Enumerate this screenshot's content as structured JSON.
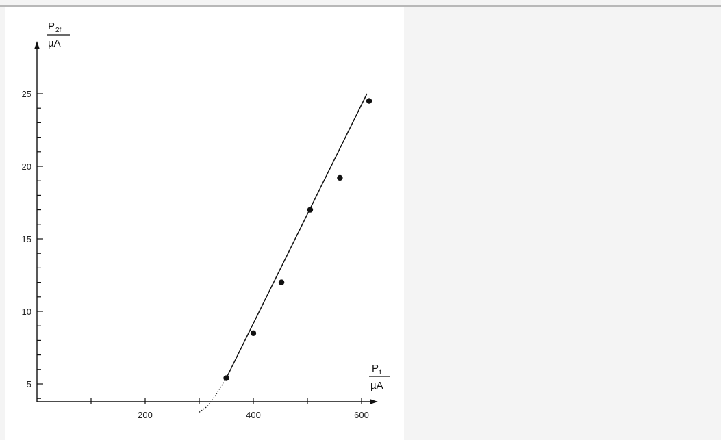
{
  "chart_data": {
    "type": "scatter",
    "title": "",
    "xlabel": {
      "symbol": "P",
      "subscript": "f",
      "unit": "µA"
    },
    "ylabel": {
      "symbol": "P",
      "subscript": "2f",
      "unit": "µA"
    },
    "xlim": [
      0,
      620
    ],
    "ylim": [
      3,
      26
    ],
    "x_ticks": [
      100,
      200,
      300,
      400,
      500,
      600
    ],
    "x_tick_labels": [
      {
        "value": 200,
        "label": "200"
      },
      {
        "value": 400,
        "label": "400"
      },
      {
        "value": 600,
        "label": "600"
      }
    ],
    "y_ticks": [
      4,
      5,
      6,
      7,
      8,
      9,
      10,
      11,
      12,
      13,
      14,
      15,
      16,
      17,
      18,
      19,
      20,
      21,
      22,
      23,
      24,
      25
    ],
    "y_tick_labels": [
      {
        "value": 5,
        "label": "5"
      },
      {
        "value": 10,
        "label": "10"
      },
      {
        "value": 15,
        "label": "15"
      },
      {
        "value": 20,
        "label": "20"
      },
      {
        "value": 25,
        "label": "25"
      }
    ],
    "series": [
      {
        "kind": "points",
        "x": [
          350,
          400,
          452,
          505,
          560,
          614
        ],
        "y": [
          5.4,
          8.5,
          12.0,
          17.0,
          19.2,
          24.5
        ]
      },
      {
        "kind": "fit-line",
        "x": [
          350,
          610
        ],
        "y": [
          5.4,
          25.0
        ]
      },
      {
        "kind": "dotted-curve",
        "x": [
          300,
          315,
          330,
          350
        ],
        "y": [
          3.05,
          3.45,
          4.2,
          5.4
        ]
      }
    ],
    "grid": false,
    "legend": "none"
  }
}
